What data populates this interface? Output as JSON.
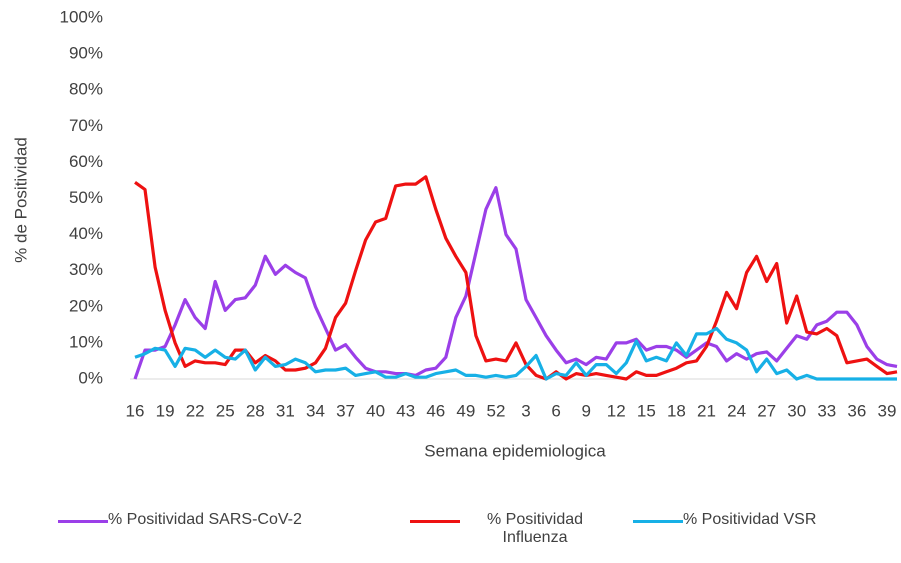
{
  "chart_data": {
    "type": "line",
    "y_label": "% de Positividad",
    "x_label": "Semana epidemiologica",
    "categories": [
      "16",
      null,
      null,
      "19",
      null,
      null,
      "22",
      null,
      null,
      "25",
      null,
      null,
      "28",
      null,
      null,
      "31",
      null,
      null,
      "34",
      null,
      null,
      "37",
      null,
      null,
      "40",
      null,
      null,
      "43",
      null,
      null,
      "46",
      null,
      null,
      "49",
      null,
      null,
      "52",
      null,
      null,
      "3",
      null,
      null,
      "6",
      null,
      null,
      "9",
      null,
      null,
      "12",
      null,
      null,
      "15",
      null,
      null,
      "18",
      null,
      null,
      "21",
      null,
      null,
      "24",
      null,
      null,
      "27",
      null,
      null,
      "30",
      null,
      null,
      "33",
      null,
      null,
      "36",
      null,
      null,
      "39",
      null
    ],
    "ylim": [
      0,
      100
    ],
    "yticks": [
      {
        "value": 0,
        "label": "0%"
      },
      {
        "value": 10,
        "label": "10%"
      },
      {
        "value": 20,
        "label": "20%"
      },
      {
        "value": 30,
        "label": "30%"
      },
      {
        "value": 40,
        "label": "40%"
      },
      {
        "value": 50,
        "label": "50%"
      },
      {
        "value": 60,
        "label": "60%"
      },
      {
        "value": 70,
        "label": "70%"
      },
      {
        "value": 80,
        "label": "80%"
      },
      {
        "value": 90,
        "label": "90%"
      },
      {
        "value": 100,
        "label": "100%"
      }
    ],
    "grid": false,
    "legend": "bottom",
    "series": [
      {
        "name": "% Positividad SARS-CoV-2",
        "color": "#9b3fe8",
        "values": [
          0,
          8,
          8,
          9,
          15,
          22,
          17,
          14,
          27,
          19,
          22,
          22.5,
          26,
          34,
          29,
          31.5,
          29.5,
          28,
          20,
          14,
          8,
          9.5,
          6,
          3,
          2,
          2,
          1.5,
          1.5,
          1,
          2.5,
          3,
          6,
          17,
          23,
          35,
          47,
          53,
          40,
          36,
          22,
          17,
          12,
          8,
          4.5,
          5.5,
          4,
          6,
          5.5,
          10,
          10,
          11,
          8,
          9,
          9,
          8,
          6,
          8,
          10,
          9,
          5,
          7,
          5.5,
          7,
          7.5,
          5,
          8.5,
          12,
          11,
          15,
          16,
          18.5,
          18.5,
          15,
          9,
          5.5,
          4,
          3.5
        ]
      },
      {
        "name": "% Positividad Influenza",
        "color": "#ee1111",
        "values": [
          54.5,
          52.5,
          31,
          19,
          10,
          3.5,
          5,
          4.5,
          4.5,
          4,
          8,
          8,
          4.5,
          6.5,
          5,
          2.5,
          2.5,
          3,
          4.5,
          8.5,
          17,
          21,
          30,
          38.5,
          43.5,
          44.5,
          53.5,
          54,
          54,
          56,
          47,
          39,
          34,
          29.5,
          12,
          5,
          5.5,
          5,
          10,
          4,
          1,
          0,
          2,
          0,
          1.5,
          1,
          1.5,
          1,
          0.5,
          0,
          2,
          1,
          1,
          2,
          3,
          4.5,
          5,
          9,
          16,
          24,
          19.5,
          29.5,
          34,
          27,
          32,
          15.5,
          23,
          13,
          12.5,
          14,
          12,
          4.5,
          5,
          5.5,
          3.5,
          1.5,
          2
        ]
      },
      {
        "name": "% Positividad VSR",
        "color": "#17b0e6",
        "values": [
          6,
          7,
          8.5,
          8,
          3.5,
          8.5,
          8,
          6,
          8,
          6,
          5.5,
          8,
          2.5,
          6,
          3.5,
          4,
          5.5,
          4.5,
          2,
          2.5,
          2.5,
          3,
          1,
          1.5,
          2,
          0.5,
          0.5,
          1.5,
          0.5,
          0.5,
          1.5,
          2,
          2.5,
          1,
          1,
          0.5,
          1,
          0.5,
          1,
          3.5,
          6.5,
          0,
          1.5,
          1,
          4.5,
          1,
          4,
          4,
          1.5,
          4.5,
          10.5,
          5,
          6,
          5,
          10,
          6.5,
          12.5,
          12.5,
          14,
          11,
          10,
          8,
          2,
          5.5,
          1.5,
          2.5,
          0,
          1,
          0,
          0,
          0,
          0,
          0,
          0,
          0,
          0,
          0
        ]
      }
    ]
  }
}
